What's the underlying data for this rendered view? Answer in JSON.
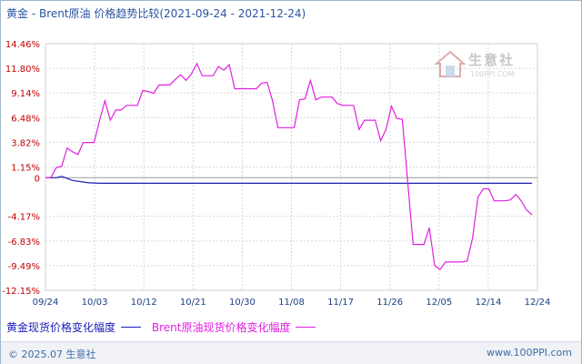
{
  "title": "黄金 - Brent原油 价格趋势比较(2021-09-24 - 2021-12-24)",
  "watermark": {
    "name": "生意社",
    "url": "100PPI.COM"
  },
  "footer": {
    "copyright": "© 2025.07 生意社",
    "site": "www.100PPI.com"
  },
  "colors": {
    "gold_series": "#1c1cb8",
    "brent_series": "#e020e0",
    "grid": "#d6d6d6",
    "zero_line": "#9a9a9a",
    "axis_label": "#c00000"
  },
  "chart_data": {
    "type": "line",
    "title": "黄金 - Brent原油 价格趋势比较(2021-09-24 - 2021-12-24)",
    "x_labels": [
      "09/24",
      "10/03",
      "10/12",
      "10/21",
      "10/30",
      "11/08",
      "11/17",
      "11/26",
      "12/05",
      "12/14",
      "12/24"
    ],
    "y_ticks": [
      "14.46%",
      "11.80%",
      "9.14%",
      "6.48%",
      "3.82%",
      "1.15%",
      "0",
      "-4.17%",
      "-6.83%",
      "-9.49%",
      "-12.15%"
    ],
    "y_tick_values": [
      14.46,
      11.8,
      9.14,
      6.48,
      3.82,
      1.15,
      0,
      -4.17,
      -6.83,
      -9.49,
      -12.15
    ],
    "ylim": [
      -12.15,
      14.46
    ],
    "x_range": [
      0,
      91
    ],
    "grid": true,
    "legend_position": "bottom-left",
    "series": [
      {
        "name": "黄金现货价格变化幅度",
        "color": "#1c1cb8",
        "points": [
          [
            0,
            0
          ],
          [
            2,
            0
          ],
          [
            3,
            0.15
          ],
          [
            5,
            -0.3
          ],
          [
            8,
            -0.55
          ],
          [
            10,
            -0.6
          ],
          [
            13,
            -0.6
          ],
          [
            15,
            -0.6
          ],
          [
            16,
            -0.6
          ],
          [
            18,
            -0.6
          ],
          [
            21,
            -0.6
          ],
          [
            22,
            -0.6
          ],
          [
            23,
            -0.6
          ],
          [
            24,
            -0.6
          ],
          [
            25,
            -0.6
          ],
          [
            26,
            -0.6
          ],
          [
            27,
            -0.6
          ],
          [
            28,
            -0.6
          ],
          [
            29,
            -0.6
          ],
          [
            30,
            -0.6
          ],
          [
            31,
            -0.6
          ],
          [
            32,
            -0.6
          ],
          [
            33,
            -0.6
          ],
          [
            34,
            -0.6
          ],
          [
            36,
            -0.6
          ],
          [
            38,
            -0.6
          ],
          [
            40,
            -0.6
          ],
          [
            41,
            -0.6
          ],
          [
            42,
            -0.6
          ],
          [
            43,
            -0.6
          ],
          [
            44,
            -0.6
          ],
          [
            45,
            -0.6
          ],
          [
            46,
            -0.6
          ],
          [
            48,
            -0.6
          ],
          [
            50,
            -0.6
          ],
          [
            52,
            -0.6
          ],
          [
            54,
            -0.6
          ],
          [
            56,
            -0.6
          ],
          [
            58,
            -0.6
          ],
          [
            60,
            -0.6
          ],
          [
            62,
            -0.6
          ],
          [
            64,
            -0.6
          ],
          [
            66,
            -0.6
          ],
          [
            68,
            -0.6
          ],
          [
            70,
            -0.6
          ],
          [
            72,
            -0.6
          ],
          [
            74,
            -0.6
          ],
          [
            76,
            -0.6
          ],
          [
            78,
            -0.6
          ],
          [
            80,
            -0.6
          ],
          [
            82,
            -0.6
          ],
          [
            84,
            -0.6
          ],
          [
            86,
            -0.6
          ],
          [
            88,
            -0.6
          ],
          [
            90,
            -0.6
          ]
        ]
      },
      {
        "name": "Brent原油现货价格变化幅度",
        "color": "#e020e0",
        "points": [
          [
            0,
            0
          ],
          [
            1,
            0
          ],
          [
            2,
            1.1
          ],
          [
            3,
            1.2
          ],
          [
            4,
            3.2
          ],
          [
            5,
            2.8
          ],
          [
            6,
            2.5
          ],
          [
            7,
            3.8
          ],
          [
            8,
            3.8
          ],
          [
            9,
            3.8
          ],
          [
            10,
            6.2
          ],
          [
            11,
            8.3
          ],
          [
            12,
            6.2
          ],
          [
            13,
            7.3
          ],
          [
            14,
            7.3
          ],
          [
            15,
            7.8
          ],
          [
            16,
            7.8
          ],
          [
            17,
            7.8
          ],
          [
            18,
            9.4
          ],
          [
            19,
            9.3
          ],
          [
            20,
            9.1
          ],
          [
            21,
            10.0
          ],
          [
            22,
            10.0
          ],
          [
            23,
            10.0
          ],
          [
            24,
            10.6
          ],
          [
            25,
            11.1
          ],
          [
            26,
            10.5
          ],
          [
            27,
            11.2
          ],
          [
            28,
            12.3
          ],
          [
            29,
            11.0
          ],
          [
            30,
            11.0
          ],
          [
            31,
            11.0
          ],
          [
            32,
            12.0
          ],
          [
            33,
            11.6
          ],
          [
            34,
            12.2
          ],
          [
            35,
            9.6
          ],
          [
            36,
            9.6
          ],
          [
            37,
            9.6
          ],
          [
            38,
            9.6
          ],
          [
            39,
            9.6
          ],
          [
            40,
            10.2
          ],
          [
            41,
            10.3
          ],
          [
            42,
            8.3
          ],
          [
            43,
            5.4
          ],
          [
            44,
            5.4
          ],
          [
            45,
            5.4
          ],
          [
            46,
            5.4
          ],
          [
            47,
            8.4
          ],
          [
            48,
            8.5
          ],
          [
            49,
            10.5
          ],
          [
            50,
            8.4
          ],
          [
            51,
            8.7
          ],
          [
            52,
            8.7
          ],
          [
            53,
            8.7
          ],
          [
            54,
            8.0
          ],
          [
            55,
            7.8
          ],
          [
            56,
            7.8
          ],
          [
            57,
            7.8
          ],
          [
            58,
            5.2
          ],
          [
            59,
            6.2
          ],
          [
            60,
            6.2
          ],
          [
            61,
            6.2
          ],
          [
            62,
            4.0
          ],
          [
            63,
            5.2
          ],
          [
            64,
            7.7
          ],
          [
            65,
            6.4
          ],
          [
            66,
            6.3
          ],
          [
            67,
            -0.4
          ],
          [
            68,
            -7.2
          ],
          [
            69,
            -7.2
          ],
          [
            70,
            -7.2
          ],
          [
            71,
            -5.4
          ],
          [
            72,
            -9.5
          ],
          [
            73,
            -9.9
          ],
          [
            74,
            -9.1
          ],
          [
            75,
            -9.1
          ],
          [
            76,
            -9.1
          ],
          [
            77,
            -9.1
          ],
          [
            78,
            -9.0
          ],
          [
            79,
            -6.5
          ],
          [
            80,
            -2.1
          ],
          [
            81,
            -1.2
          ],
          [
            82,
            -1.2
          ],
          [
            83,
            -2.5
          ],
          [
            84,
            -2.5
          ],
          [
            85,
            -2.5
          ],
          [
            86,
            -2.4
          ],
          [
            87,
            -1.8
          ],
          [
            88,
            -2.5
          ],
          [
            89,
            -3.5
          ],
          [
            90,
            -4.0
          ]
        ]
      }
    ]
  }
}
